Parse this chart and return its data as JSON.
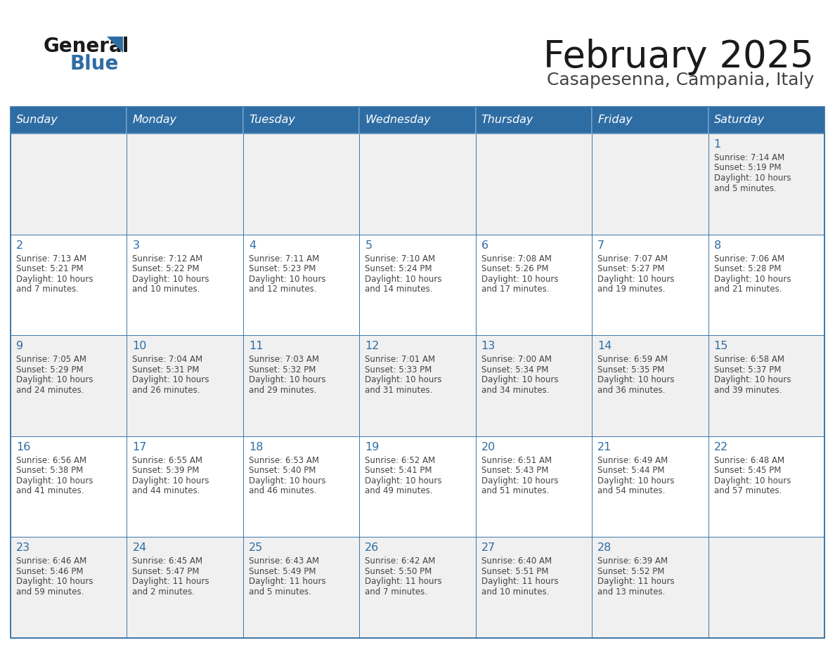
{
  "title": "February 2025",
  "subtitle": "Casapesenna, Campania, Italy",
  "days_of_week": [
    "Sunday",
    "Monday",
    "Tuesday",
    "Wednesday",
    "Thursday",
    "Friday",
    "Saturday"
  ],
  "header_bg": "#2E6DA4",
  "header_text": "#FFFFFF",
  "cell_bg_light": "#F0F0F0",
  "cell_bg_white": "#FFFFFF",
  "border_color": "#2E6DA4",
  "text_color": "#444444",
  "day_number_color": "#2E6DA4",
  "calendar_data": [
    [
      null,
      null,
      null,
      null,
      null,
      null,
      {
        "day": 1,
        "sunrise": "7:14 AM",
        "sunset": "5:19 PM",
        "daylight": "10 hours and 5 minutes."
      }
    ],
    [
      {
        "day": 2,
        "sunrise": "7:13 AM",
        "sunset": "5:21 PM",
        "daylight": "10 hours and 7 minutes."
      },
      {
        "day": 3,
        "sunrise": "7:12 AM",
        "sunset": "5:22 PM",
        "daylight": "10 hours and 10 minutes."
      },
      {
        "day": 4,
        "sunrise": "7:11 AM",
        "sunset": "5:23 PM",
        "daylight": "10 hours and 12 minutes."
      },
      {
        "day": 5,
        "sunrise": "7:10 AM",
        "sunset": "5:24 PM",
        "daylight": "10 hours and 14 minutes."
      },
      {
        "day": 6,
        "sunrise": "7:08 AM",
        "sunset": "5:26 PM",
        "daylight": "10 hours and 17 minutes."
      },
      {
        "day": 7,
        "sunrise": "7:07 AM",
        "sunset": "5:27 PM",
        "daylight": "10 hours and 19 minutes."
      },
      {
        "day": 8,
        "sunrise": "7:06 AM",
        "sunset": "5:28 PM",
        "daylight": "10 hours and 21 minutes."
      }
    ],
    [
      {
        "day": 9,
        "sunrise": "7:05 AM",
        "sunset": "5:29 PM",
        "daylight": "10 hours and 24 minutes."
      },
      {
        "day": 10,
        "sunrise": "7:04 AM",
        "sunset": "5:31 PM",
        "daylight": "10 hours and 26 minutes."
      },
      {
        "day": 11,
        "sunrise": "7:03 AM",
        "sunset": "5:32 PM",
        "daylight": "10 hours and 29 minutes."
      },
      {
        "day": 12,
        "sunrise": "7:01 AM",
        "sunset": "5:33 PM",
        "daylight": "10 hours and 31 minutes."
      },
      {
        "day": 13,
        "sunrise": "7:00 AM",
        "sunset": "5:34 PM",
        "daylight": "10 hours and 34 minutes."
      },
      {
        "day": 14,
        "sunrise": "6:59 AM",
        "sunset": "5:35 PM",
        "daylight": "10 hours and 36 minutes."
      },
      {
        "day": 15,
        "sunrise": "6:58 AM",
        "sunset": "5:37 PM",
        "daylight": "10 hours and 39 minutes."
      }
    ],
    [
      {
        "day": 16,
        "sunrise": "6:56 AM",
        "sunset": "5:38 PM",
        "daylight": "10 hours and 41 minutes."
      },
      {
        "day": 17,
        "sunrise": "6:55 AM",
        "sunset": "5:39 PM",
        "daylight": "10 hours and 44 minutes."
      },
      {
        "day": 18,
        "sunrise": "6:53 AM",
        "sunset": "5:40 PM",
        "daylight": "10 hours and 46 minutes."
      },
      {
        "day": 19,
        "sunrise": "6:52 AM",
        "sunset": "5:41 PM",
        "daylight": "10 hours and 49 minutes."
      },
      {
        "day": 20,
        "sunrise": "6:51 AM",
        "sunset": "5:43 PM",
        "daylight": "10 hours and 51 minutes."
      },
      {
        "day": 21,
        "sunrise": "6:49 AM",
        "sunset": "5:44 PM",
        "daylight": "10 hours and 54 minutes."
      },
      {
        "day": 22,
        "sunrise": "6:48 AM",
        "sunset": "5:45 PM",
        "daylight": "10 hours and 57 minutes."
      }
    ],
    [
      {
        "day": 23,
        "sunrise": "6:46 AM",
        "sunset": "5:46 PM",
        "daylight": "10 hours and 59 minutes."
      },
      {
        "day": 24,
        "sunrise": "6:45 AM",
        "sunset": "5:47 PM",
        "daylight": "11 hours and 2 minutes."
      },
      {
        "day": 25,
        "sunrise": "6:43 AM",
        "sunset": "5:49 PM",
        "daylight": "11 hours and 5 minutes."
      },
      {
        "day": 26,
        "sunrise": "6:42 AM",
        "sunset": "5:50 PM",
        "daylight": "11 hours and 7 minutes."
      },
      {
        "day": 27,
        "sunrise": "6:40 AM",
        "sunset": "5:51 PM",
        "daylight": "11 hours and 10 minutes."
      },
      {
        "day": 28,
        "sunrise": "6:39 AM",
        "sunset": "5:52 PM",
        "daylight": "11 hours and 13 minutes."
      },
      null
    ]
  ]
}
